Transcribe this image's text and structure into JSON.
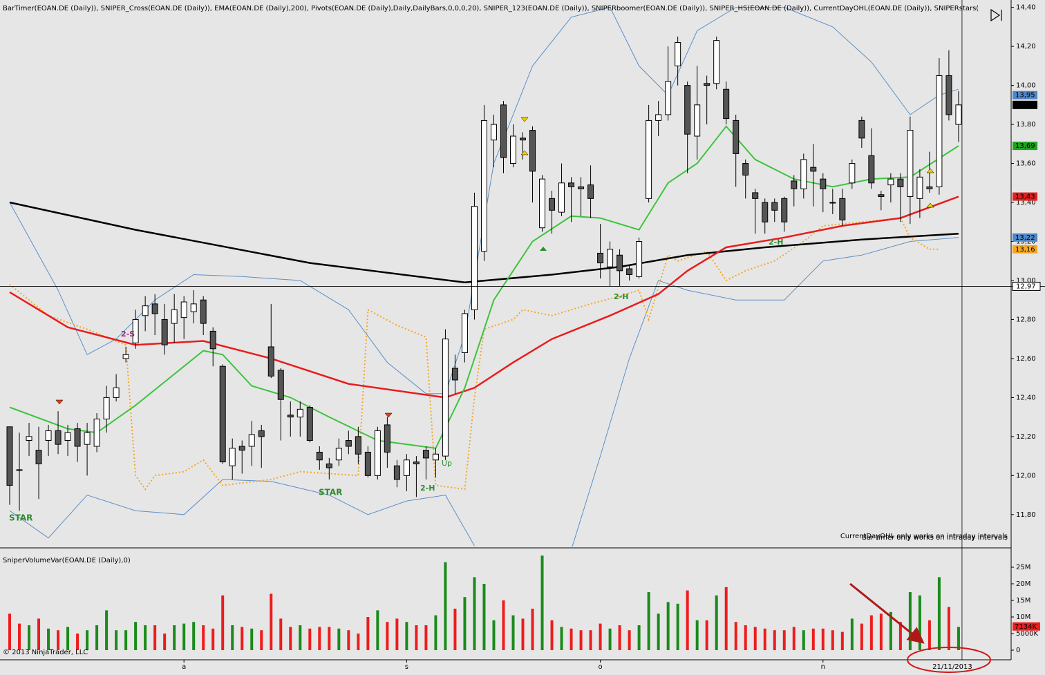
{
  "chart_data": [
    {
      "type": "candlestick",
      "title": "BarTimer(EOAN.DE (Daily)), SNIPER_Cross(EOAN.DE (Daily)), EMA(EOAN.DE (Daily),200), Pivots(EOAN.DE (Daily),Daily,DailyBars,0,0,0,20), SNIPER_123(EOAN.DE (Daily)), SNIPERboomer(EOAN.DE (Daily)), SNIPER_HS(EOAN.DE (Daily)), CurrentDayOHL(EOAN.DE (Daily)), SNIPERstars(",
      "x": [
        0,
        1,
        2,
        3,
        4,
        5,
        6,
        7,
        8,
        9,
        10,
        11,
        12,
        13,
        14,
        15,
        16,
        17,
        18,
        19,
        20,
        21,
        22,
        23,
        24,
        25,
        26,
        27,
        28,
        29,
        30,
        31,
        32,
        33,
        34,
        35,
        36,
        37,
        38,
        39,
        40,
        41,
        42,
        43,
        44,
        45,
        46,
        47,
        48,
        49,
        50,
        51,
        52,
        53,
        54,
        55,
        56,
        57,
        58,
        59,
        60,
        61,
        62,
        63,
        64,
        65,
        66,
        67,
        68,
        69,
        70,
        71,
        72,
        73,
        74,
        75,
        76,
        77,
        78,
        79,
        80,
        81,
        82,
        83,
        84,
        85,
        86,
        87,
        88,
        89,
        90,
        91,
        92,
        93,
        94,
        95,
        96,
        97,
        98
      ],
      "open": [
        12.25,
        12.03,
        12.18,
        12.13,
        12.18,
        12.23,
        12.18,
        12.24,
        12.16,
        12.15,
        12.29,
        12.4,
        12.6,
        12.68,
        12.82,
        12.88,
        12.8,
        12.78,
        12.81,
        12.84,
        12.9,
        12.74,
        12.56,
        12.05,
        12.15,
        12.15,
        12.23,
        12.66,
        12.54,
        12.31,
        12.3,
        12.35,
        12.12,
        12.06,
        12.08,
        12.18,
        12.2,
        12.12,
        12.0,
        12.26,
        12.05,
        12.0,
        12.07,
        12.13,
        12.08,
        12.1,
        12.55,
        12.63,
        12.85,
        13.15,
        13.72,
        13.9,
        13.6,
        13.73,
        13.77,
        13.27,
        13.42,
        13.35,
        13.5,
        13.48,
        13.49,
        13.14,
        13.07,
        13.13,
        13.06,
        13.02,
        13.42,
        13.82,
        13.85,
        14.1,
        14.0,
        13.74,
        14.01,
        14.01,
        13.98,
        13.82,
        13.6,
        13.45,
        13.4,
        13.4,
        13.42,
        13.51,
        13.47,
        13.58,
        13.52,
        13.4,
        13.42,
        13.5,
        13.82,
        13.64,
        13.44,
        13.49,
        13.52,
        13.43,
        13.42,
        13.48,
        13.48,
        14.05,
        13.8
      ],
      "high": [
        12.25,
        12.22,
        12.27,
        12.25,
        12.26,
        12.33,
        12.26,
        12.27,
        12.27,
        12.32,
        12.46,
        12.52,
        12.66,
        12.85,
        12.92,
        12.93,
        12.88,
        12.93,
        12.92,
        12.95,
        12.92,
        12.76,
        12.57,
        12.19,
        12.18,
        12.28,
        12.26,
        12.88,
        12.55,
        12.38,
        12.38,
        12.36,
        12.15,
        12.09,
        12.19,
        12.23,
        12.25,
        12.15,
        12.25,
        12.3,
        12.08,
        12.11,
        12.1,
        12.15,
        12.14,
        12.75,
        12.62,
        12.85,
        13.45,
        13.9,
        13.85,
        13.92,
        13.8,
        13.76,
        13.79,
        13.54,
        13.46,
        13.6,
        13.53,
        13.53,
        13.59,
        13.29,
        13.2,
        13.16,
        13.08,
        13.22,
        13.9,
        13.92,
        14.2,
        14.25,
        14.02,
        14.1,
        14.05,
        14.25,
        14.02,
        13.85,
        13.62,
        13.47,
        13.42,
        13.42,
        13.43,
        13.54,
        13.65,
        13.7,
        13.55,
        13.47,
        13.47,
        13.62,
        13.84,
        13.78,
        13.46,
        13.55,
        13.55,
        13.84,
        13.57,
        13.66,
        14.14,
        14.18,
        13.97
      ],
      "low": [
        11.85,
        11.82,
        12.1,
        11.88,
        12.1,
        12.11,
        12.1,
        12.07,
        12.0,
        12.12,
        12.22,
        12.38,
        12.58,
        12.65,
        12.74,
        12.72,
        12.62,
        12.68,
        12.7,
        12.78,
        12.72,
        12.56,
        12.06,
        11.98,
        12.01,
        12.05,
        12.04,
        12.5,
        12.18,
        12.2,
        12.2,
        12.17,
        12.03,
        11.98,
        12.05,
        12.11,
        12.06,
        11.99,
        11.98,
        12.04,
        11.94,
        11.92,
        11.89,
        11.98,
        11.99,
        12.08,
        12.42,
        12.58,
        12.8,
        13.1,
        13.58,
        13.55,
        13.58,
        13.62,
        13.4,
        13.25,
        13.24,
        13.33,
        13.3,
        13.33,
        13.32,
        13.01,
        12.97,
        12.97,
        13.0,
        13.01,
        13.4,
        13.74,
        13.82,
        14.0,
        13.55,
        13.62,
        13.8,
        13.98,
        13.8,
        13.48,
        13.42,
        13.24,
        13.24,
        13.3,
        13.25,
        13.38,
        13.42,
        13.38,
        13.35,
        13.34,
        13.28,
        13.47,
        13.68,
        13.47,
        13.36,
        13.4,
        13.3,
        13.29,
        13.32,
        13.45,
        13.44,
        13.82,
        13.71
      ],
      "close": [
        11.95,
        12.03,
        12.2,
        12.06,
        12.23,
        12.16,
        12.22,
        12.15,
        12.22,
        12.29,
        12.4,
        12.45,
        12.62,
        12.8,
        12.87,
        12.83,
        12.67,
        12.85,
        12.89,
        12.88,
        12.78,
        12.65,
        12.07,
        12.14,
        12.13,
        12.21,
        12.2,
        12.51,
        12.39,
        12.3,
        12.34,
        12.18,
        12.08,
        12.04,
        12.14,
        12.15,
        12.11,
        12.0,
        12.23,
        12.12,
        11.98,
        12.08,
        12.06,
        12.09,
        12.11,
        12.7,
        12.49,
        12.83,
        13.38,
        13.82,
        13.8,
        13.63,
        13.74,
        13.72,
        13.56,
        13.52,
        13.36,
        13.5,
        13.48,
        13.47,
        13.42,
        13.09,
        13.16,
        13.05,
        13.03,
        13.2,
        13.82,
        13.85,
        14.02,
        14.22,
        13.75,
        13.9,
        14.0,
        14.23,
        13.83,
        13.65,
        13.54,
        13.42,
        13.3,
        13.36,
        13.3,
        13.47,
        13.62,
        13.56,
        13.47,
        13.4,
        13.31,
        13.6,
        13.73,
        13.5,
        13.43,
        13.52,
        13.48,
        13.77,
        13.53,
        13.47,
        14.05,
        13.85,
        13.9
      ],
      "up_color": "#ffffff",
      "down_color": "#555555",
      "xlim": [
        -1,
        103.43
      ],
      "xticks": [
        {
          "value": 18,
          "label": "a"
        },
        {
          "value": 41,
          "label": "s"
        },
        {
          "value": 61,
          "label": "o"
        },
        {
          "value": 84,
          "label": "n"
        }
      ],
      "cursor": {
        "value": 98,
        "label": "21/11/2013"
      },
      "ylim": [
        11.64,
        14.42
      ],
      "yticks": [
        {
          "value": 11.8,
          "label": "11,80"
        },
        {
          "value": 12.0,
          "label": "12,00"
        },
        {
          "value": 12.2,
          "label": "12,20"
        },
        {
          "value": 12.4,
          "label": "12,40"
        },
        {
          "value": 12.6,
          "label": "12,60"
        },
        {
          "value": 12.8,
          "label": "12,80"
        },
        {
          "value": 13.0,
          "label": "13,00"
        },
        {
          "value": 13.2,
          "label": "13,20"
        },
        {
          "value": 13.4,
          "label": "13,40"
        },
        {
          "value": 13.6,
          "label": "13,60"
        },
        {
          "value": 13.8,
          "label": "13,80"
        },
        {
          "value": 14.0,
          "label": "14,00"
        },
        {
          "value": 14.2,
          "label": "14,20"
        },
        {
          "value": 14.4,
          "label": "14,40"
        }
      ],
      "lines": [
        {
          "color": "#5b8fc7",
          "width": 1,
          "dash": "none",
          "x": [
            0,
            5,
            8,
            11,
            15,
            19,
            24,
            30,
            35,
            39,
            43,
            45,
            47,
            50,
            54,
            58,
            62,
            65,
            68,
            71,
            75,
            80,
            85,
            89,
            93,
            96,
            98
          ],
          "values": [
            13.4,
            12.95,
            12.62,
            12.7,
            12.9,
            13.03,
            13.02,
            13.0,
            12.85,
            12.58,
            12.42,
            12.42,
            12.72,
            13.6,
            14.1,
            14.35,
            14.4,
            14.1,
            13.95,
            14.28,
            14.4,
            14.4,
            14.3,
            14.12,
            13.85,
            13.95,
            13.98
          ]
        },
        {
          "color": "#5b8fc7",
          "width": 1,
          "dash": "none",
          "x": [
            0,
            4,
            8,
            13,
            18,
            22,
            27,
            33,
            37,
            41,
            45,
            48,
            53,
            58,
            61,
            64,
            67,
            70,
            75,
            80,
            84,
            88,
            93,
            98
          ],
          "values": [
            11.82,
            11.68,
            11.9,
            11.82,
            11.8,
            11.98,
            11.97,
            11.9,
            11.8,
            11.87,
            11.9,
            11.64,
            null,
            11.62,
            12.1,
            12.6,
            13.0,
            12.95,
            12.9,
            12.9,
            13.1,
            13.13,
            13.2,
            13.22
          ]
        },
        {
          "color": "#f5a623",
          "width": 2,
          "dash": "2 3",
          "x": [
            0,
            4,
            8,
            12,
            13,
            14,
            15,
            18,
            20,
            22,
            27,
            30,
            36,
            37,
            40,
            43,
            44,
            47,
            48,
            49,
            52,
            53,
            56,
            60,
            63,
            65,
            66,
            68,
            69,
            72,
            74,
            76,
            79,
            82,
            84,
            88,
            92,
            93,
            95,
            96
          ],
          "values": [
            12.98,
            12.82,
            12.75,
            12.67,
            12.0,
            11.93,
            12.0,
            12.02,
            12.08,
            11.95,
            11.98,
            12.02,
            12.0,
            12.85,
            12.77,
            12.71,
            11.95,
            11.93,
            12.4,
            12.75,
            12.8,
            12.85,
            12.82,
            12.88,
            12.92,
            12.95,
            12.8,
            13.13,
            13.1,
            13.15,
            13.0,
            13.05,
            13.1,
            13.2,
            13.28,
            13.3,
            13.32,
            13.22,
            13.16,
            13.16
          ]
        },
        {
          "color": "#000000",
          "width": 2.5,
          "dash": "none",
          "x": [
            0,
            13,
            31,
            47,
            56,
            63,
            70,
            78,
            88,
            98
          ],
          "values": [
            13.4,
            13.26,
            13.09,
            12.99,
            13.03,
            13.07,
            13.13,
            13.17,
            13.21,
            13.24
          ]
        },
        {
          "color": "#e81c1c",
          "width": 2.5,
          "dash": "none",
          "x": [
            0,
            6,
            13,
            20,
            27,
            35,
            45,
            48,
            52,
            56,
            62,
            67,
            70,
            74,
            80,
            86,
            92,
            98
          ],
          "values": [
            12.94,
            12.76,
            12.67,
            12.69,
            12.6,
            12.47,
            12.4,
            12.45,
            12.58,
            12.7,
            12.82,
            12.93,
            13.05,
            13.17,
            13.22,
            13.28,
            13.32,
            13.43
          ]
        },
        {
          "color": "#3cc43c",
          "width": 2,
          "dash": "none",
          "x": [
            0,
            6,
            9,
            13,
            17,
            20,
            22,
            25,
            29,
            33,
            38,
            44,
            47,
            50,
            54,
            58,
            61,
            65,
            68,
            71,
            74,
            77,
            81,
            85,
            89,
            93,
            98
          ],
          "values": [
            12.35,
            12.24,
            12.22,
            12.36,
            12.52,
            12.64,
            12.62,
            12.46,
            12.4,
            12.3,
            12.18,
            12.14,
            12.45,
            12.9,
            13.2,
            13.33,
            13.32,
            13.26,
            13.5,
            13.6,
            13.79,
            13.62,
            13.52,
            13.48,
            13.52,
            13.53,
            13.69
          ]
        }
      ],
      "price_labels": [
        {
          "value": 13.95,
          "label": "13,95",
          "color": "#4f86c6"
        },
        {
          "value": 13.9,
          "label": "13,90",
          "color": "#000000"
        },
        {
          "value": 13.69,
          "label": "13,69",
          "color": "#22a022"
        },
        {
          "value": 13.43,
          "label": "13,43",
          "color": "#e02020"
        },
        {
          "value": 13.22,
          "label": "13,22",
          "color": "#4f86c6"
        },
        {
          "value": 13.16,
          "label": "13,16",
          "color": "#f5a623"
        }
      ],
      "last_price": {
        "value": 12.97,
        "label": "12,97"
      },
      "annotations": [
        "STAR",
        "2-S",
        "STAR",
        "2-H",
        "Up",
        "2-H",
        "2-H"
      ],
      "notes": [
        "Bar timer only works on intraday intervals",
        "CurrentDayOHL only works on intraday intervals"
      ],
      "copyright": "© 2013 NinjaTrader, LLC"
    },
    {
      "type": "bar",
      "title": "SniperVolumeVar(EOAN.DE (Daily),0)",
      "values": [
        11,
        8,
        7.5,
        9.5,
        6.5,
        6,
        7,
        5,
        6,
        7.5,
        12,
        6,
        6,
        8.5,
        7.5,
        7.5,
        5,
        7.5,
        8,
        8.5,
        7.5,
        6.5,
        16.5,
        7.5,
        7,
        6.5,
        6,
        17,
        9.5,
        7,
        7.5,
        6.5,
        7,
        7,
        6.5,
        6,
        5,
        10,
        12,
        8.5,
        9.5,
        8.5,
        7.5,
        7.5,
        10.5,
        26.5,
        12.5,
        16,
        22,
        20,
        9,
        15,
        10.5,
        9.5,
        12.5,
        28.5,
        9,
        7,
        6.5,
        6,
        6,
        8,
        6.5,
        7.5,
        6,
        7.5,
        17.5,
        11,
        14.5,
        14,
        18,
        9,
        9,
        16.5,
        19,
        8.5,
        7.5,
        7,
        6.5,
        6,
        6,
        7,
        6,
        6.5,
        6.5,
        6,
        5.5,
        9.5,
        8,
        10.5,
        11,
        11.5,
        8.5,
        17.5,
        16.5,
        9,
        22,
        13,
        7
      ],
      "up_color": "#1a8a1a",
      "down_color": "#ee1c1c",
      "ylim": [
        0,
        30
      ],
      "yticks": [
        0,
        {
          "value": 5,
          "label": "5000K"
        },
        {
          "value": 10,
          "label": "10M"
        },
        {
          "value": 15,
          "label": "15M"
        },
        {
          "value": 20,
          "label": "20M"
        },
        {
          "value": 25,
          "label": "25M"
        }
      ],
      "last_value": {
        "value": 7.134,
        "label": "7134K"
      }
    }
  ]
}
